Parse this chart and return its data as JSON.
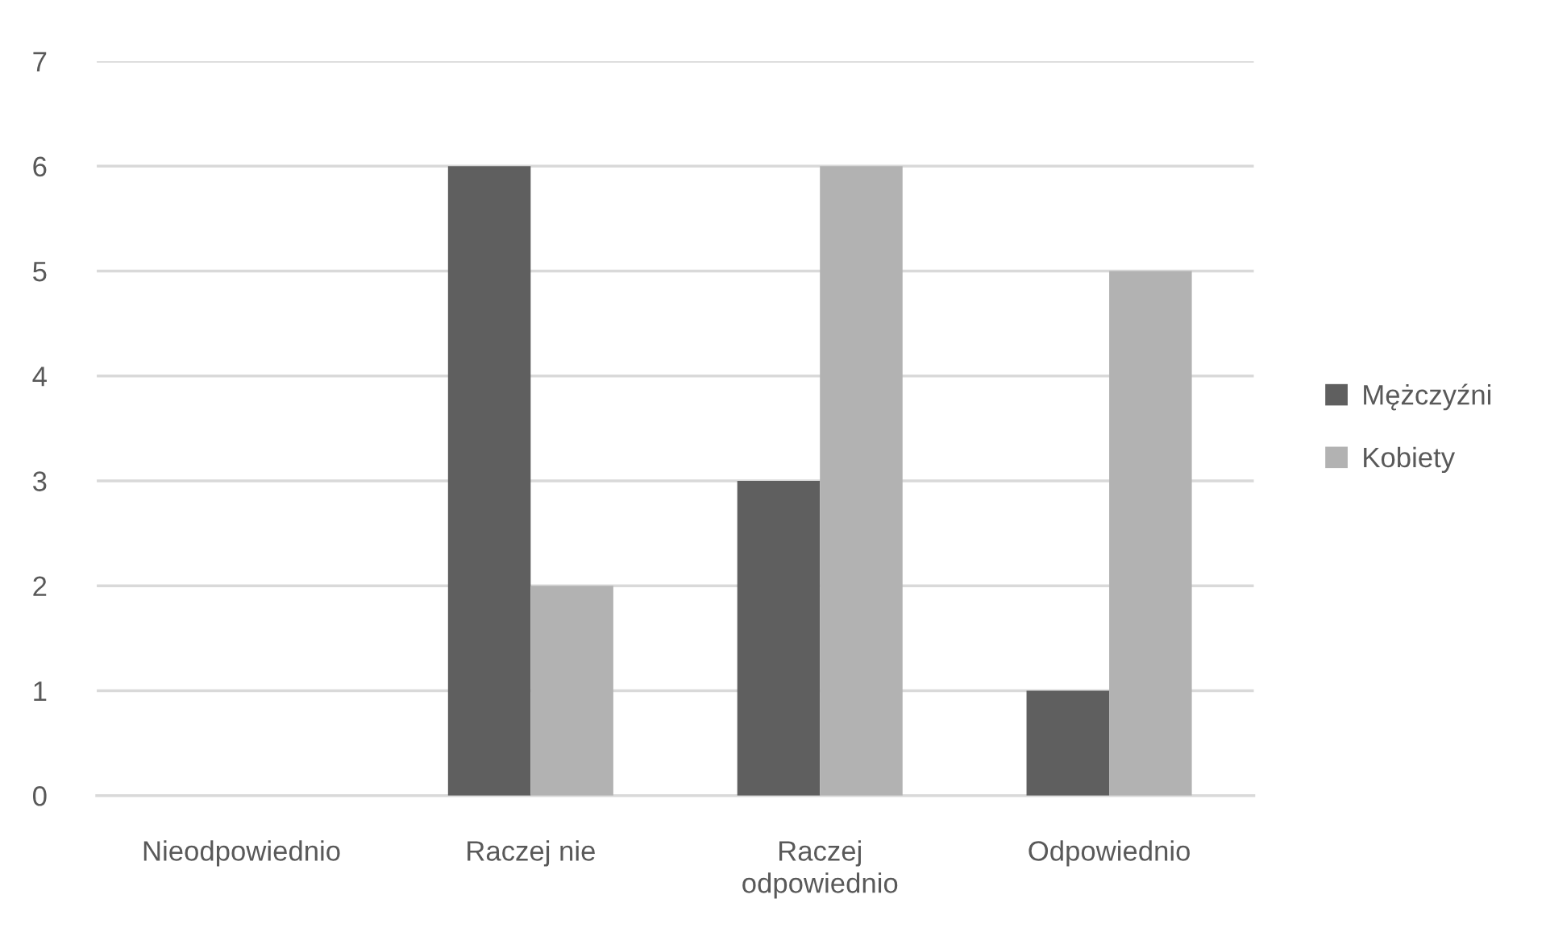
{
  "chart_data": {
    "type": "bar",
    "categories": [
      "Nieodpowiednio",
      "Raczej nie",
      "Raczej odpowiednio",
      "Odpowiednio"
    ],
    "series": [
      {
        "name": "Mężczyźni",
        "color": "#5f5f5f",
        "values": [
          0,
          6,
          3,
          1
        ]
      },
      {
        "name": "Kobiety",
        "color": "#b2b2b2",
        "values": [
          0,
          2,
          6,
          5
        ]
      }
    ],
    "ylim": [
      0,
      7
    ],
    "yticks": [
      0,
      1,
      2,
      3,
      4,
      5,
      6,
      7
    ],
    "grid": "y",
    "legend": "right"
  }
}
